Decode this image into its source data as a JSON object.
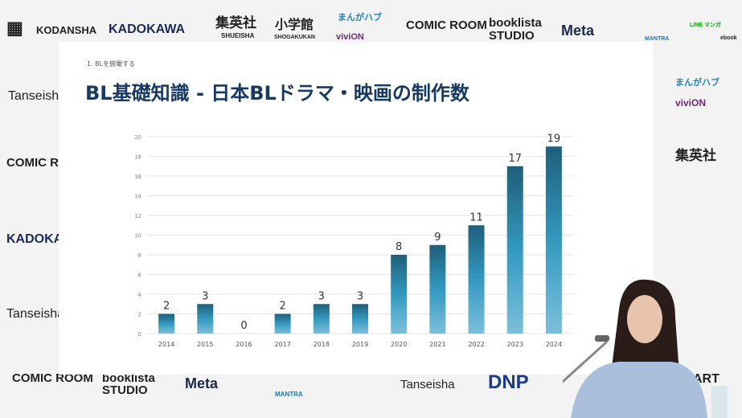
{
  "backdrop": {
    "logos": [
      "KODANSHA",
      "KADOKAWA",
      "集英社",
      "SHUEISHA",
      "小学館",
      "SHOGAKUKAN",
      "まんがハブ",
      "viviON",
      "COMIC ROOM",
      "booklista",
      "STUDIO",
      "Meta",
      "MANTRA",
      "LINE マンガ",
      "ebook",
      "Tanseisha",
      "DNP",
      "ART"
    ]
  },
  "slide": {
    "breadcrumb": "1. BLを俯瞰する",
    "title": "BL基礎知識 - 日本BLドラマ・映画の制作数"
  },
  "chart_data": {
    "type": "bar",
    "categories": [
      "2014",
      "2015",
      "2016",
      "2017",
      "2018",
      "2019",
      "2020",
      "2021",
      "2022",
      "2023",
      "2024"
    ],
    "values": [
      2,
      3,
      0,
      2,
      3,
      3,
      8,
      9,
      11,
      17,
      19
    ],
    "ylim": [
      0,
      20
    ],
    "yticks": [
      0,
      2,
      4,
      6,
      8,
      10,
      12,
      14,
      16,
      18,
      20
    ],
    "grid": true,
    "data_labels": true,
    "colors": {
      "bar_top": "#1f5f7a",
      "bar_mid": "#3399bf",
      "bar_bottom": "#7cbfdc"
    }
  }
}
